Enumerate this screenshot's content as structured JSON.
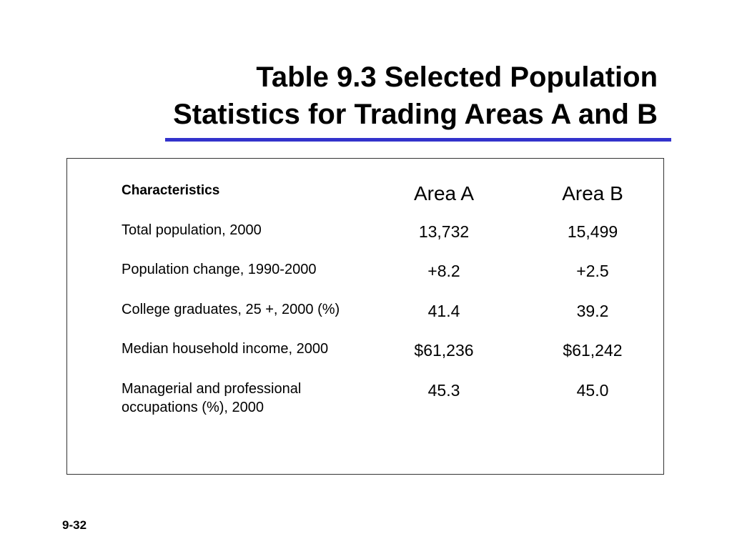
{
  "title": {
    "line1": "Table 9.3 Selected Population",
    "line2": "Statistics for Trading Areas A and B"
  },
  "colors": {
    "rule": "#3333cc",
    "border": "#333333"
  },
  "table": {
    "headers": [
      "Characteristics",
      "Area A",
      "Area B"
    ],
    "rows": [
      {
        "label": "Total population, 2000",
        "a": "13,732",
        "b": "15,499"
      },
      {
        "label": "Population change, 1990-2000",
        "a": "+8.2",
        "b": "+2.5"
      },
      {
        "label": "College graduates, 25 +, 2000 (%)",
        "a": "41.4",
        "b": "39.2"
      },
      {
        "label": "Median household income, 2000",
        "a": "$61,236",
        "b": "$61,242"
      },
      {
        "label": "Managerial and professional occupations (%), 2000",
        "a": "45.3",
        "b": "45.0"
      }
    ]
  },
  "footer": {
    "page": "9-32"
  }
}
